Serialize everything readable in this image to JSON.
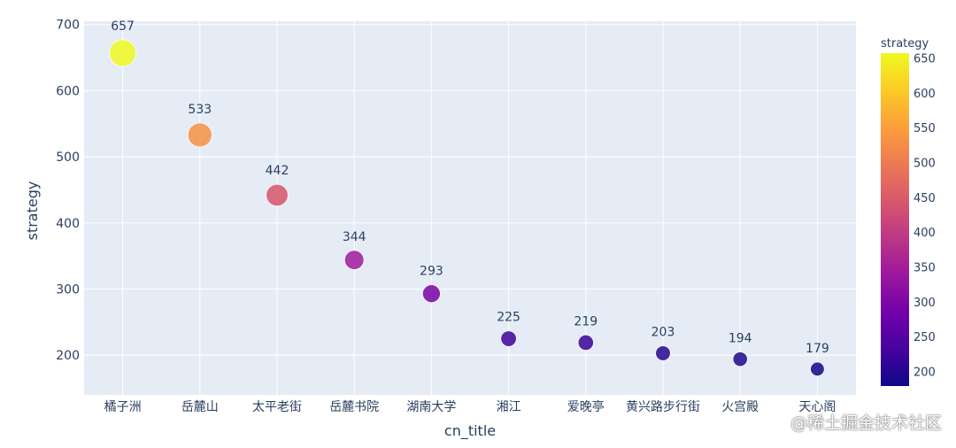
{
  "chart_data": {
    "type": "scatter",
    "categories": [
      "橘子洲",
      "岳麓山",
      "太平老街",
      "岳麓书院",
      "湖南大学",
      "湘江",
      "爱晚亭",
      "黄兴路步行街",
      "火宫殿",
      "天心阁"
    ],
    "values": [
      657,
      533,
      442,
      344,
      293,
      225,
      219,
      203,
      194,
      179
    ],
    "xlabel": "cn_title",
    "ylabel": "strategy",
    "yticks": [
      200,
      300,
      400,
      500,
      600,
      700
    ],
    "ylim": [
      140,
      705
    ],
    "grid": true,
    "colorbar": {
      "title": "strategy",
      "range": [
        179,
        657
      ],
      "ticks": [
        200,
        250,
        300,
        350,
        400,
        450,
        500,
        550,
        600,
        650
      ],
      "colorscale": [
        "#0d0887",
        "#46039f",
        "#7201a8",
        "#9c179e",
        "#bd3786",
        "#d8576b",
        "#ed7953",
        "#fb9f3a",
        "#fdca26",
        "#f0f921"
      ]
    }
  },
  "watermark": "@稀土掘金技术社区"
}
